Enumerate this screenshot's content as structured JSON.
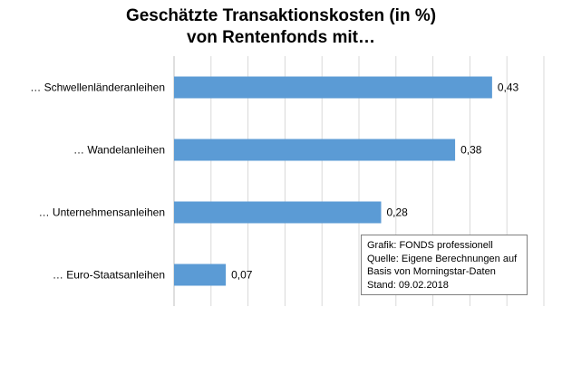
{
  "chart_data": {
    "type": "bar",
    "orientation": "horizontal",
    "title_lines": [
      "Geschätzte Transaktionskosten (in %)",
      "von Rentenfonds mit…"
    ],
    "categories": [
      "… Schwellenländeranleihen",
      "… Wandelanleihen",
      "… Unternehmensanleihen",
      "… Euro-Staatsanleihen"
    ],
    "values": [
      0.43,
      0.38,
      0.28,
      0.07
    ],
    "value_labels": [
      "0,43",
      "0,38",
      "0,28",
      "0,07"
    ],
    "xlim": [
      0,
      0.5
    ],
    "grid": true,
    "bar_color": "#5b9bd5"
  },
  "source_box": {
    "lines": [
      "Grafik: FONDS professionell",
      "Quelle: Eigene Berechnungen auf",
      "Basis von Morningstar-Daten",
      "Stand: 09.02.2018"
    ]
  }
}
